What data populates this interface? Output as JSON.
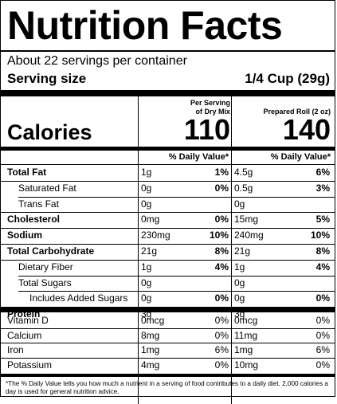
{
  "title": "Nutrition Facts",
  "servings_per_container": "About 22 servings per container",
  "serving_size_label": "Serving size",
  "serving_size_value": "1/4 Cup (29g)",
  "col1_header_line1": "Per Serving",
  "col1_header_line2": "of Dry Mix",
  "col2_header": "Prepared Roll (2 oz)",
  "calories_label": "Calories",
  "calories_col1": "110",
  "calories_col2": "140",
  "dv_header": "% Daily Value*",
  "rows": [
    {
      "label": "Total Fat",
      "bold": true,
      "indent": 0,
      "a1": "1g",
      "p1": "1%",
      "a2": "4.5g",
      "p2": "6%"
    },
    {
      "label": "Saturated Fat",
      "bold": false,
      "indent": 1,
      "a1": "0g",
      "p1": "0%",
      "a2": "0.5g",
      "p2": "3%"
    },
    {
      "label": "Trans Fat",
      "bold": false,
      "indent": 1,
      "a1": "0g",
      "p1": "",
      "a2": "0g",
      "p2": ""
    },
    {
      "label": "Cholesterol",
      "bold": true,
      "indent": 0,
      "a1": "0mg",
      "p1": "0%",
      "a2": "15mg",
      "p2": "5%"
    },
    {
      "label": "Sodium",
      "bold": true,
      "indent": 0,
      "a1": "230mg",
      "p1": "10%",
      "a2": "240mg",
      "p2": "10%"
    },
    {
      "label": "Total Carbohydrate",
      "bold": true,
      "indent": 0,
      "a1": "21g",
      "p1": "8%",
      "a2": "21g",
      "p2": "8%"
    },
    {
      "label": "Dietary Fiber",
      "bold": false,
      "indent": 1,
      "a1": "1g",
      "p1": "4%",
      "a2": "1g",
      "p2": "4%"
    },
    {
      "label": "Total Sugars",
      "bold": false,
      "indent": 1,
      "a1": "0g",
      "p1": "",
      "a2": "0g",
      "p2": ""
    },
    {
      "label": "Includes Added Sugars",
      "bold": false,
      "indent": 2,
      "a1": "0g",
      "p1": "0%",
      "a2": "0g",
      "p2": "0%"
    },
    {
      "label": "Protein",
      "bold": true,
      "indent": 0,
      "a1": "3g",
      "p1": "",
      "a2": "3g",
      "p2": ""
    }
  ],
  "vitamins": [
    {
      "label": "Vitamin D",
      "a1": "0mcg",
      "p1": "0%",
      "a2": "0mcg",
      "p2": "0%"
    },
    {
      "label": "Calcium",
      "a1": "8mg",
      "p1": "0%",
      "a2": "11mg",
      "p2": "0%"
    },
    {
      "label": "Iron",
      "a1": "1mg",
      "p1": "6%",
      "a2": "1mg",
      "p2": "6%"
    },
    {
      "label": "Potassium",
      "a1": "4mg",
      "p1": "0%",
      "a2": "10mg",
      "p2": "0%"
    }
  ],
  "footnote": "*The % Daily Value tells you how much a nutrient in a serving of food contributes to a daily diet. 2,000 calories a day is used for general nutrition advice."
}
